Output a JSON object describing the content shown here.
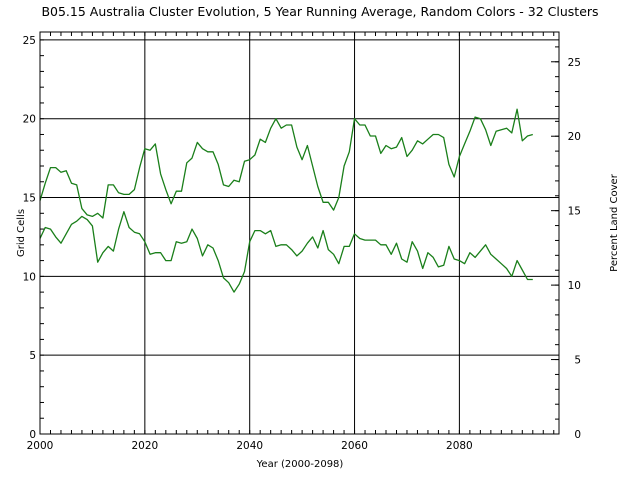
{
  "chart_data": {
    "type": "line",
    "title": "B05.15 Australia Cluster Evolution, 5 Year Running Average, Random Colors - 32 Clusters",
    "xlabel": "Year (2000-2098)",
    "ylabel": "Grid Cells",
    "ylabel_right": "Percent Land Cover",
    "xlim": [
      2000,
      2099
    ],
    "ylim": [
      0,
      25.5
    ],
    "ylim_right": [
      0,
      27
    ],
    "x_ticks": [
      2000,
      2020,
      2040,
      2060,
      2080
    ],
    "y_ticks": [
      0,
      5,
      10,
      15,
      20,
      25
    ],
    "y_ticks_right": [
      0,
      5,
      10,
      15,
      20,
      25
    ],
    "grid": true,
    "line_color": "#1a7f1a",
    "x": [
      2000,
      2001,
      2002,
      2003,
      2004,
      2005,
      2006,
      2007,
      2008,
      2009,
      2010,
      2011,
      2012,
      2013,
      2014,
      2015,
      2016,
      2017,
      2018,
      2019,
      2020,
      2021,
      2022,
      2023,
      2024,
      2025,
      2026,
      2027,
      2028,
      2029,
      2030,
      2031,
      2032,
      2033,
      2034,
      2035,
      2036,
      2037,
      2038,
      2039,
      2040,
      2041,
      2042,
      2043,
      2044,
      2045,
      2046,
      2047,
      2048,
      2049,
      2050,
      2051,
      2052,
      2053,
      2054,
      2055,
      2056,
      2057,
      2058,
      2059,
      2060,
      2061,
      2062,
      2063,
      2064,
      2065,
      2066,
      2067,
      2068,
      2069,
      2070,
      2071,
      2072,
      2073,
      2074,
      2075,
      2076,
      2077,
      2078,
      2079,
      2080,
      2081,
      2082,
      2083,
      2084,
      2085,
      2086,
      2087,
      2088,
      2089,
      2090,
      2091,
      2092,
      2093,
      2094
    ],
    "series": [
      {
        "values": [
          14.8,
          15.9,
          16.9,
          16.9,
          16.6,
          16.7,
          15.9,
          15.8,
          14.3,
          13.9,
          13.8,
          14.0,
          13.7,
          15.8,
          15.8,
          15.3,
          15.2,
          15.2,
          15.5,
          16.9,
          18.1,
          18.0,
          18.4,
          16.5,
          15.5,
          14.6,
          15.4,
          15.4,
          17.2,
          17.5,
          18.5,
          18.1,
          17.9,
          17.9,
          17.1,
          15.8,
          15.7,
          16.1,
          16.0,
          17.3,
          17.4,
          17.7,
          18.7,
          18.5,
          19.4,
          20.0,
          19.4,
          19.6,
          19.6,
          18.2,
          17.4,
          18.3,
          17.0,
          15.7,
          14.7,
          14.7,
          14.2,
          15.0,
          17.0,
          17.9,
          20.0,
          19.6,
          19.6,
          18.9,
          18.9,
          17.8,
          18.3,
          18.1,
          18.2,
          18.8,
          17.6,
          18.0,
          18.6,
          18.4,
          18.7,
          19.0,
          19.0,
          18.8,
          17.1,
          16.3,
          17.6,
          18.4,
          19.2,
          20.1,
          20.0,
          19.3,
          18.3,
          19.2,
          19.3,
          19.4,
          19.1,
          20.6,
          18.6,
          18.9,
          19.0
        ]
      },
      {
        "values": [
          12.4,
          13.1,
          13.0,
          12.5,
          12.1,
          12.7,
          13.3,
          13.5,
          13.8,
          13.6,
          13.2,
          10.9,
          11.5,
          11.9,
          11.6,
          13.0,
          14.1,
          13.1,
          12.8,
          12.7,
          12.2,
          11.4,
          11.5,
          11.5,
          11.0,
          11.0,
          12.2,
          12.1,
          12.2,
          13.0,
          12.4,
          11.3,
          12.0,
          11.8,
          11.0,
          9.9,
          9.6,
          9.0,
          9.5,
          10.3,
          12.2,
          12.9,
          12.9,
          12.7,
          12.9,
          11.9,
          12.0,
          12.0,
          11.7,
          11.3,
          11.6,
          12.1,
          12.5,
          11.8,
          12.9,
          11.7,
          11.4,
          10.8,
          11.9,
          11.9,
          12.7,
          12.4,
          12.3,
          12.3,
          12.3,
          12.0,
          12.0,
          11.4,
          12.1,
          11.1,
          10.9,
          12.2,
          11.6,
          10.5,
          11.5,
          11.2,
          10.6,
          10.7,
          11.9,
          11.1,
          11.0,
          10.8,
          11.5,
          11.2,
          11.6,
          12.0,
          11.4,
          11.1,
          10.8,
          10.5,
          10.0,
          11.0,
          10.4,
          9.8,
          9.8
        ]
      }
    ]
  }
}
